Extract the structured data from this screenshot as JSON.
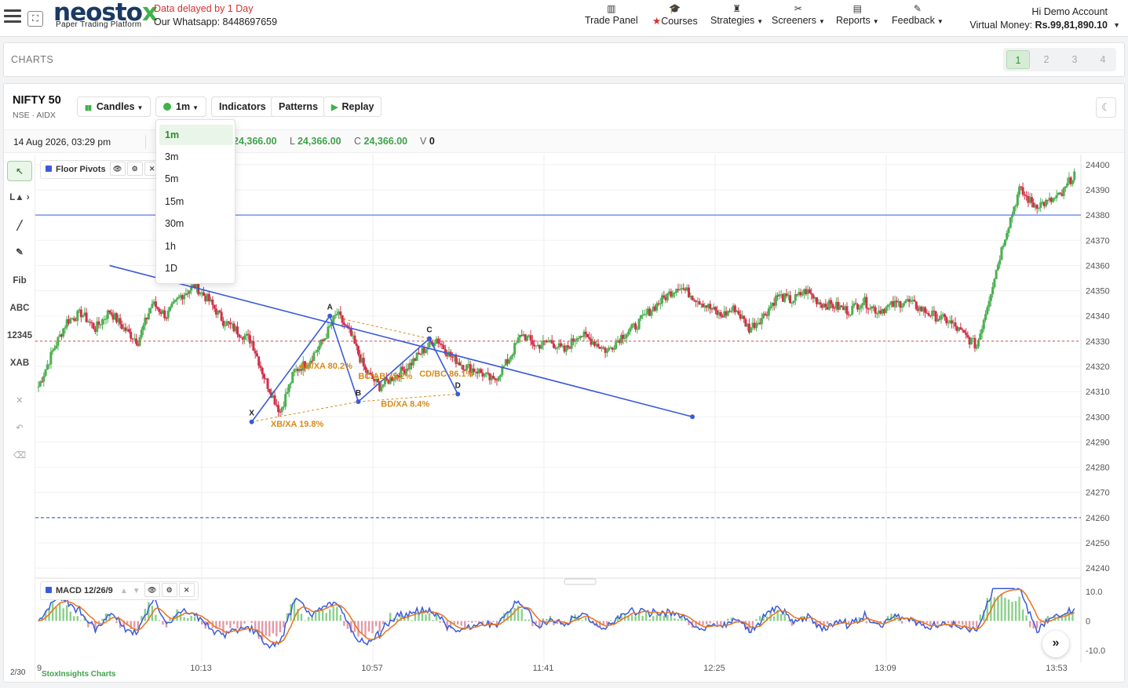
{
  "header": {
    "logo_main": "neosto",
    "logo_x": "x",
    "logo_sub": "Paper Trading Platform",
    "delay_notice": "Data delayed by 1 Day",
    "whatsapp": "Our Whatsapp: 8448697659",
    "nav": [
      {
        "label": "Trade Panel",
        "icon": "bar-chart-icon",
        "caret": false
      },
      {
        "label": "Courses",
        "icon": "graduation-cap-icon",
        "caret": false
      },
      {
        "label": "Strategies",
        "icon": "chess-icon",
        "caret": true
      },
      {
        "label": "Screeners",
        "icon": "filter-icon",
        "caret": true
      },
      {
        "label": "Reports",
        "icon": "document-icon",
        "caret": true
      },
      {
        "label": "Feedback",
        "icon": "pen-icon",
        "caret": true
      }
    ],
    "greeting": "Hi Demo Account",
    "virtual_money_label": "Virtual Money: ",
    "virtual_money_value": "Rs.99,81,890.10"
  },
  "charts_bar": {
    "title": "CHARTS",
    "layouts": [
      "1",
      "2",
      "3",
      "4"
    ],
    "active_layout": "1"
  },
  "chart": {
    "symbol": "NIFTY 50",
    "exchange": "NSE · AIDX",
    "toolbar": {
      "chart_type": "Candles",
      "interval": "1m",
      "indicators": "Indicators",
      "patterns": "Patterns",
      "replay": "Replay"
    },
    "datetime": "14 Aug 2026, 03:29 pm",
    "ohlc": {
      "h_value": "24,366.00",
      "l_label": "L",
      "l_value": "24,366.00",
      "c_label": "C",
      "c_value": "24,366.00",
      "v_label": "V",
      "v_value": "0"
    },
    "tools": [
      "Fib",
      "ABC",
      "12345",
      "XAB"
    ],
    "tool_glyphs": {
      "cursor": "↖",
      "line_arrow": "L▲ ›",
      "line": "╱",
      "pencil": "✎",
      "remove": "✕",
      "undo": "↶",
      "erase": "⌫"
    },
    "study": "Floor Pivots",
    "macd_label": "MACD 12/26/9",
    "page_count": "2/30",
    "credit_prefix": "StoxInsights",
    "credit_suffix": " Charts",
    "interval_options": [
      "1m",
      "3m",
      "5m",
      "15m",
      "30m",
      "1h",
      "1D"
    ],
    "price_axis": [
      "24400",
      "24390",
      "24380",
      "24370",
      "24360",
      "24350",
      "24340",
      "24330",
      "24320",
      "24310",
      "24300",
      "24290",
      "24280",
      "24270",
      "24260",
      "24250",
      "24240"
    ],
    "macd_axis": [
      "10.0",
      "0",
      "-10.0"
    ],
    "time_axis": [
      "10:13",
      "10:57",
      "11:41",
      "12:25",
      "13:09",
      "13:53"
    ],
    "x_axis_edge_label": "9",
    "pattern_points": [
      "X",
      "A",
      "B",
      "C",
      "D"
    ],
    "pattern_ratios": [
      "AB/XA 80.2%",
      "BC/AB 75.2%",
      "CD/BC 86.1%",
      "BD/XA 8.4%",
      "XB/XA 19.8%"
    ],
    "colors": {
      "up": "#4caf50",
      "down": "#d32f4a",
      "pattern": "#3a5bd9",
      "ratio": "#d98a1a",
      "pivot": "#5a7cf0",
      "dashed_red": "#d84a4a",
      "dashed_blue": "#4a6ad9"
    }
  },
  "chart_data": {
    "type": "candlestick",
    "symbol": "NIFTY 50",
    "ylim": [
      24236,
      24404
    ],
    "close_anchors": [
      [
        0,
        24312
      ],
      [
        1,
        24326
      ],
      [
        2,
        24338
      ],
      [
        3,
        24341
      ],
      [
        4,
        24335
      ],
      [
        5,
        24342
      ],
      [
        6,
        24335
      ],
      [
        7,
        24330
      ],
      [
        8,
        24345
      ],
      [
        9,
        24340
      ],
      [
        10,
        24348
      ],
      [
        11,
        24352
      ],
      [
        12,
        24346
      ],
      [
        13,
        24338
      ],
      [
        14,
        24334
      ],
      [
        15,
        24330
      ],
      [
        16,
        24314
      ],
      [
        17,
        24302
      ],
      [
        18,
        24318
      ],
      [
        19,
        24322
      ],
      [
        20,
        24330
      ],
      [
        21,
        24341
      ],
      [
        22,
        24332
      ],
      [
        23,
        24318
      ],
      [
        24,
        24312
      ],
      [
        25,
        24316
      ],
      [
        26,
        24320
      ],
      [
        27,
        24326
      ],
      [
        28,
        24331
      ],
      [
        29,
        24324
      ],
      [
        30,
        24320
      ],
      [
        31,
        24318
      ],
      [
        32,
        24314
      ],
      [
        33,
        24322
      ],
      [
        34,
        24333
      ],
      [
        35,
        24328
      ],
      [
        36,
        24330
      ],
      [
        37,
        24326
      ],
      [
        38,
        24333
      ],
      [
        39,
        24330
      ],
      [
        40,
        24326
      ],
      [
        41,
        24332
      ],
      [
        42,
        24336
      ],
      [
        43,
        24342
      ],
      [
        44,
        24347
      ],
      [
        45,
        24352
      ],
      [
        46,
        24348
      ],
      [
        47,
        24344
      ],
      [
        48,
        24340
      ],
      [
        49,
        24343
      ],
      [
        50,
        24335
      ],
      [
        51,
        24340
      ],
      [
        52,
        24348
      ],
      [
        53,
        24346
      ],
      [
        54,
        24350
      ],
      [
        55,
        24345
      ],
      [
        56,
        24344
      ],
      [
        57,
        24342
      ],
      [
        58,
        24346
      ],
      [
        59,
        24342
      ],
      [
        60,
        24344
      ],
      [
        61,
        24346
      ],
      [
        62,
        24343
      ],
      [
        63,
        24340
      ],
      [
        64,
        24338
      ],
      [
        65,
        24333
      ],
      [
        66,
        24328
      ],
      [
        67,
        24350
      ],
      [
        68,
        24372
      ],
      [
        69,
        24390
      ],
      [
        70,
        24384
      ],
      [
        71,
        24385
      ],
      [
        72,
        24388
      ],
      [
        73,
        24398
      ]
    ],
    "pivot_line": 24380,
    "dashed_red_line": 24330,
    "dashed_blue_line": 24260,
    "trend_line": [
      [
        5,
        24360
      ],
      [
        46,
        24300
      ]
    ],
    "xabcd": {
      "X": [
        15,
        24298
      ],
      "A": [
        20.5,
        24340
      ],
      "B": [
        22.5,
        24306
      ],
      "C": [
        27.5,
        24331
      ],
      "D": [
        29.5,
        24309
      ]
    }
  }
}
